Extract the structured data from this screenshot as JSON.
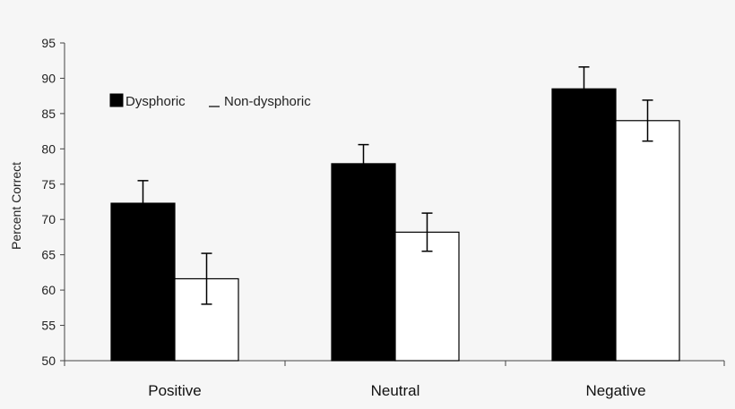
{
  "chart_data": {
    "type": "bar",
    "categories": [
      "Positive",
      "Neutral",
      "Negative"
    ],
    "series": [
      {
        "name": "Dysphoric",
        "values": [
          72.3,
          77.9,
          88.5
        ],
        "errors": [
          3.2,
          2.7,
          3.1
        ],
        "color": "#000000"
      },
      {
        "name": "Non-dysphoric",
        "values": [
          61.6,
          68.2,
          84.0
        ],
        "errors": [
          3.6,
          2.7,
          2.9
        ],
        "color": "#ffffff"
      }
    ],
    "ylabel": "Percent Correct",
    "xlabel": "",
    "title": "",
    "ylim": [
      50,
      95
    ],
    "yticks": [
      50,
      55,
      60,
      65,
      70,
      75,
      80,
      85,
      90,
      95
    ],
    "legend_position": "top-left",
    "grid": false
  }
}
